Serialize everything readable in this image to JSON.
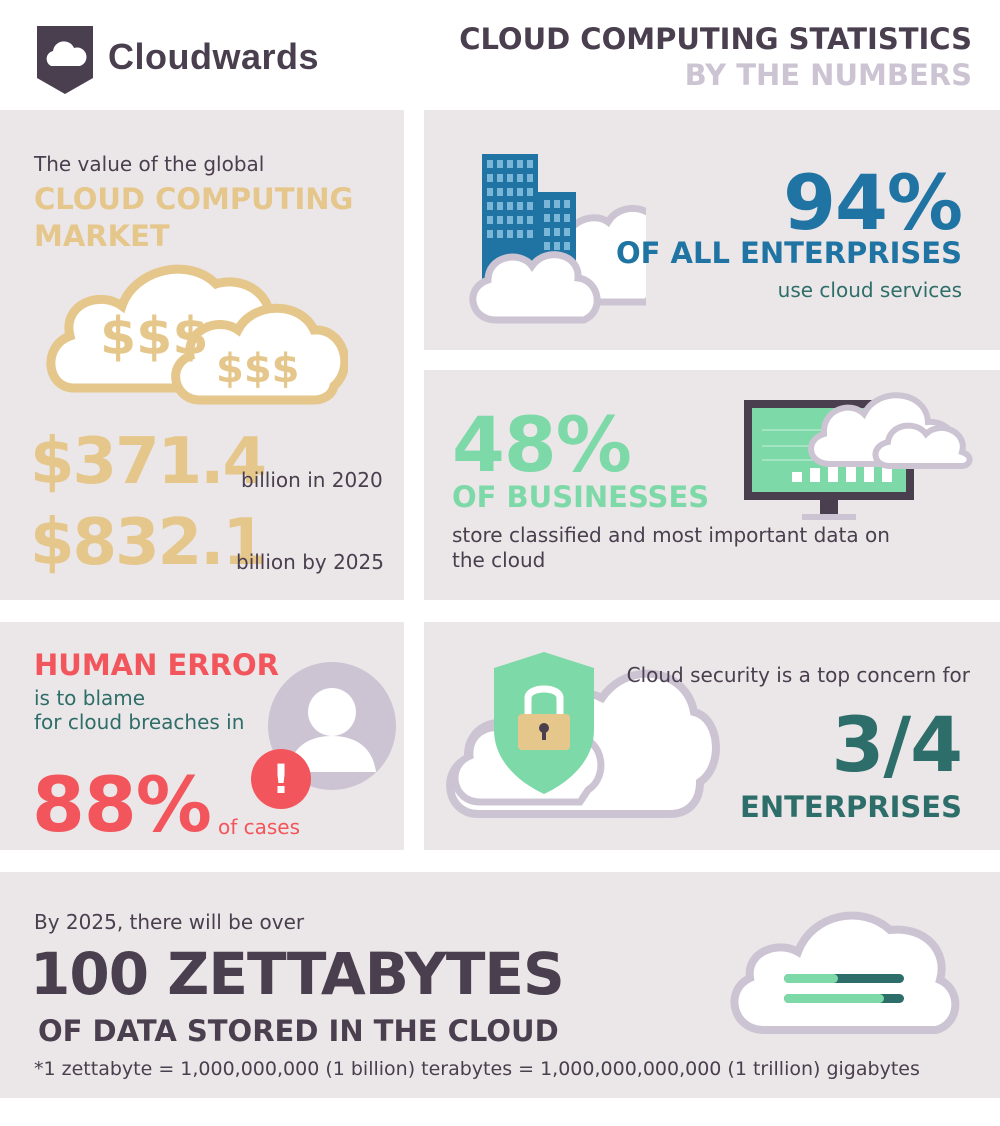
{
  "header": {
    "logo_text": "Cloudwards",
    "title_line1": "CLOUD COMPUTING STATISTICS",
    "title_line2": "BY THE NUMBERS"
  },
  "market": {
    "intro": "The value of the global",
    "heading_line1": "CLOUD COMPUTING",
    "heading_line2": "MARKET",
    "cloud_symbol_large": "$$$",
    "cloud_symbol_small": "$$$",
    "value1": "$371.4",
    "caption1": "billion in 2020",
    "value2": "$832.1",
    "caption2": "billion by 2025"
  },
  "enterprises": {
    "value": "94%",
    "heading": "OF ALL ENTERPRISES",
    "caption": "use cloud services"
  },
  "businesses": {
    "value": "48%",
    "heading": "OF BUSINESSES",
    "caption": "store classified and most important data on the cloud"
  },
  "human_error": {
    "heading": "HUMAN ERROR",
    "line1": "is to blame",
    "line2": "for cloud breaches in",
    "value": "88%",
    "caption": "of cases",
    "alert_symbol": "!"
  },
  "security": {
    "intro": "Cloud security is a top concern for",
    "value": "3/4",
    "heading": "ENTERPRISES"
  },
  "zettabytes": {
    "intro": "By 2025, there will be over",
    "value": "100 ZETTABYTES",
    "heading": "OF DATA STORED IN THE CLOUD",
    "note": "*1 zettabyte = 1,000,000,000 (1 billion) terabytes = 1,000,000,000,000 (1 trillion) gigabytes"
  },
  "colors": {
    "background": "#ebe6e7",
    "dark": "#4a3f4e",
    "gold": "#e5c68b",
    "blue": "#1f74a3",
    "mint": "#7dd9a7",
    "red": "#f2555b",
    "teal": "#2e6e6a",
    "lilac": "#cdc4d3"
  },
  "icons": {
    "logo": "cloud-shield-icon",
    "market": "money-clouds-icon",
    "enterprises": "office-building-cloud-icon",
    "businesses": "monitor-chart-cloud-icon",
    "human_error": "user-avatar-alert-icon",
    "security": "shield-padlock-cloud-icon",
    "zettabytes": "cloud-storage-icon"
  }
}
